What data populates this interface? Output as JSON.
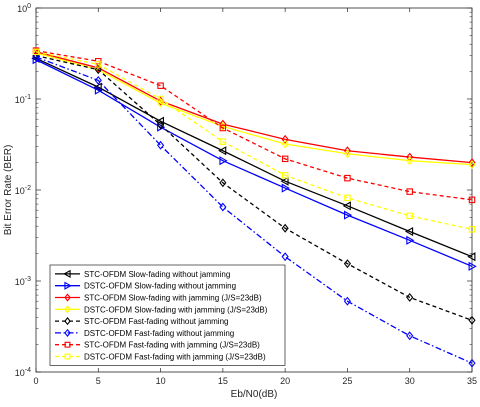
{
  "chart_data": {
    "type": "line",
    "xlabel": "Eb/N0(dB)",
    "ylabel": "Bit Error Rate  (BER)",
    "x_ticks": [
      "0",
      "5",
      "10",
      "15",
      "20",
      "25",
      "30",
      "35"
    ],
    "y_ticks": [
      {
        "base": "10",
        "exp": "-4"
      },
      {
        "base": "10",
        "exp": "-3"
      },
      {
        "base": "10",
        "exp": "-2"
      },
      {
        "base": "10",
        "exp": "-1"
      },
      {
        "base": "10",
        "exp": "0"
      }
    ],
    "xlim": [
      0,
      35
    ],
    "ylim": [
      0.0001,
      1
    ],
    "yscale": "log",
    "grid": false,
    "legend_position": "bottom-left",
    "x": [
      0,
      5,
      10,
      15,
      20,
      25,
      30,
      35
    ],
    "series": [
      {
        "name": "STC-OFDM Slow-fading without jamming",
        "color": "#000000",
        "dash": "solid",
        "marker": "triangle-left",
        "values": [
          0.28,
          0.135,
          0.057,
          0.027,
          0.0125,
          0.0067,
          0.0035,
          0.00185
        ]
      },
      {
        "name": "DSTC-OFDM Slow-fading without jamming",
        "color": "#0000ff",
        "dash": "solid",
        "marker": "triangle-right",
        "values": [
          0.27,
          0.125,
          0.049,
          0.021,
          0.0105,
          0.0053,
          0.0028,
          0.00145
        ]
      },
      {
        "name": "STC-OFDM Slow-fading with jamming (J/S=23dB)",
        "color": "#ff0000",
        "dash": "solid",
        "marker": "diamond",
        "values": [
          0.33,
          0.22,
          0.095,
          0.053,
          0.036,
          0.027,
          0.023,
          0.02
        ]
      },
      {
        "name": "DSTC-OFDM Slow-fading with jamming (J/S=23dB)",
        "color": "#ffff00",
        "dash": "solid",
        "marker": "diamond",
        "values": [
          0.32,
          0.21,
          0.09,
          0.05,
          0.032,
          0.025,
          0.021,
          0.019
        ]
      },
      {
        "name": "STC-OFDM Fast-fading without jamming",
        "color": "#000000",
        "dash": "dashed",
        "marker": "diamond",
        "values": [
          0.3,
          0.21,
          0.052,
          0.012,
          0.0038,
          0.00155,
          0.00066,
          0.00037
        ]
      },
      {
        "name": "DSTC-OFDM Fast-fading without jamming",
        "color": "#0000ff",
        "dash": "dashdot",
        "marker": "diamond",
        "values": [
          0.29,
          0.16,
          0.031,
          0.0065,
          0.00185,
          0.0006,
          0.00025,
          0.000125
        ]
      },
      {
        "name": "STC-OFDM Fast-fading with jamming (J/S=23dB)",
        "color": "#ff0000",
        "dash": "dashed",
        "marker": "square",
        "values": [
          0.34,
          0.26,
          0.14,
          0.048,
          0.022,
          0.0135,
          0.0096,
          0.0078
        ]
      },
      {
        "name": "DSTC-OFDM Fast-fading with jamming (J/S=23dB)",
        "color": "#ffff00",
        "dash": "dashed",
        "marker": "square",
        "values": [
          0.33,
          0.24,
          0.1,
          0.034,
          0.0145,
          0.0082,
          0.0052,
          0.0037
        ]
      }
    ]
  }
}
